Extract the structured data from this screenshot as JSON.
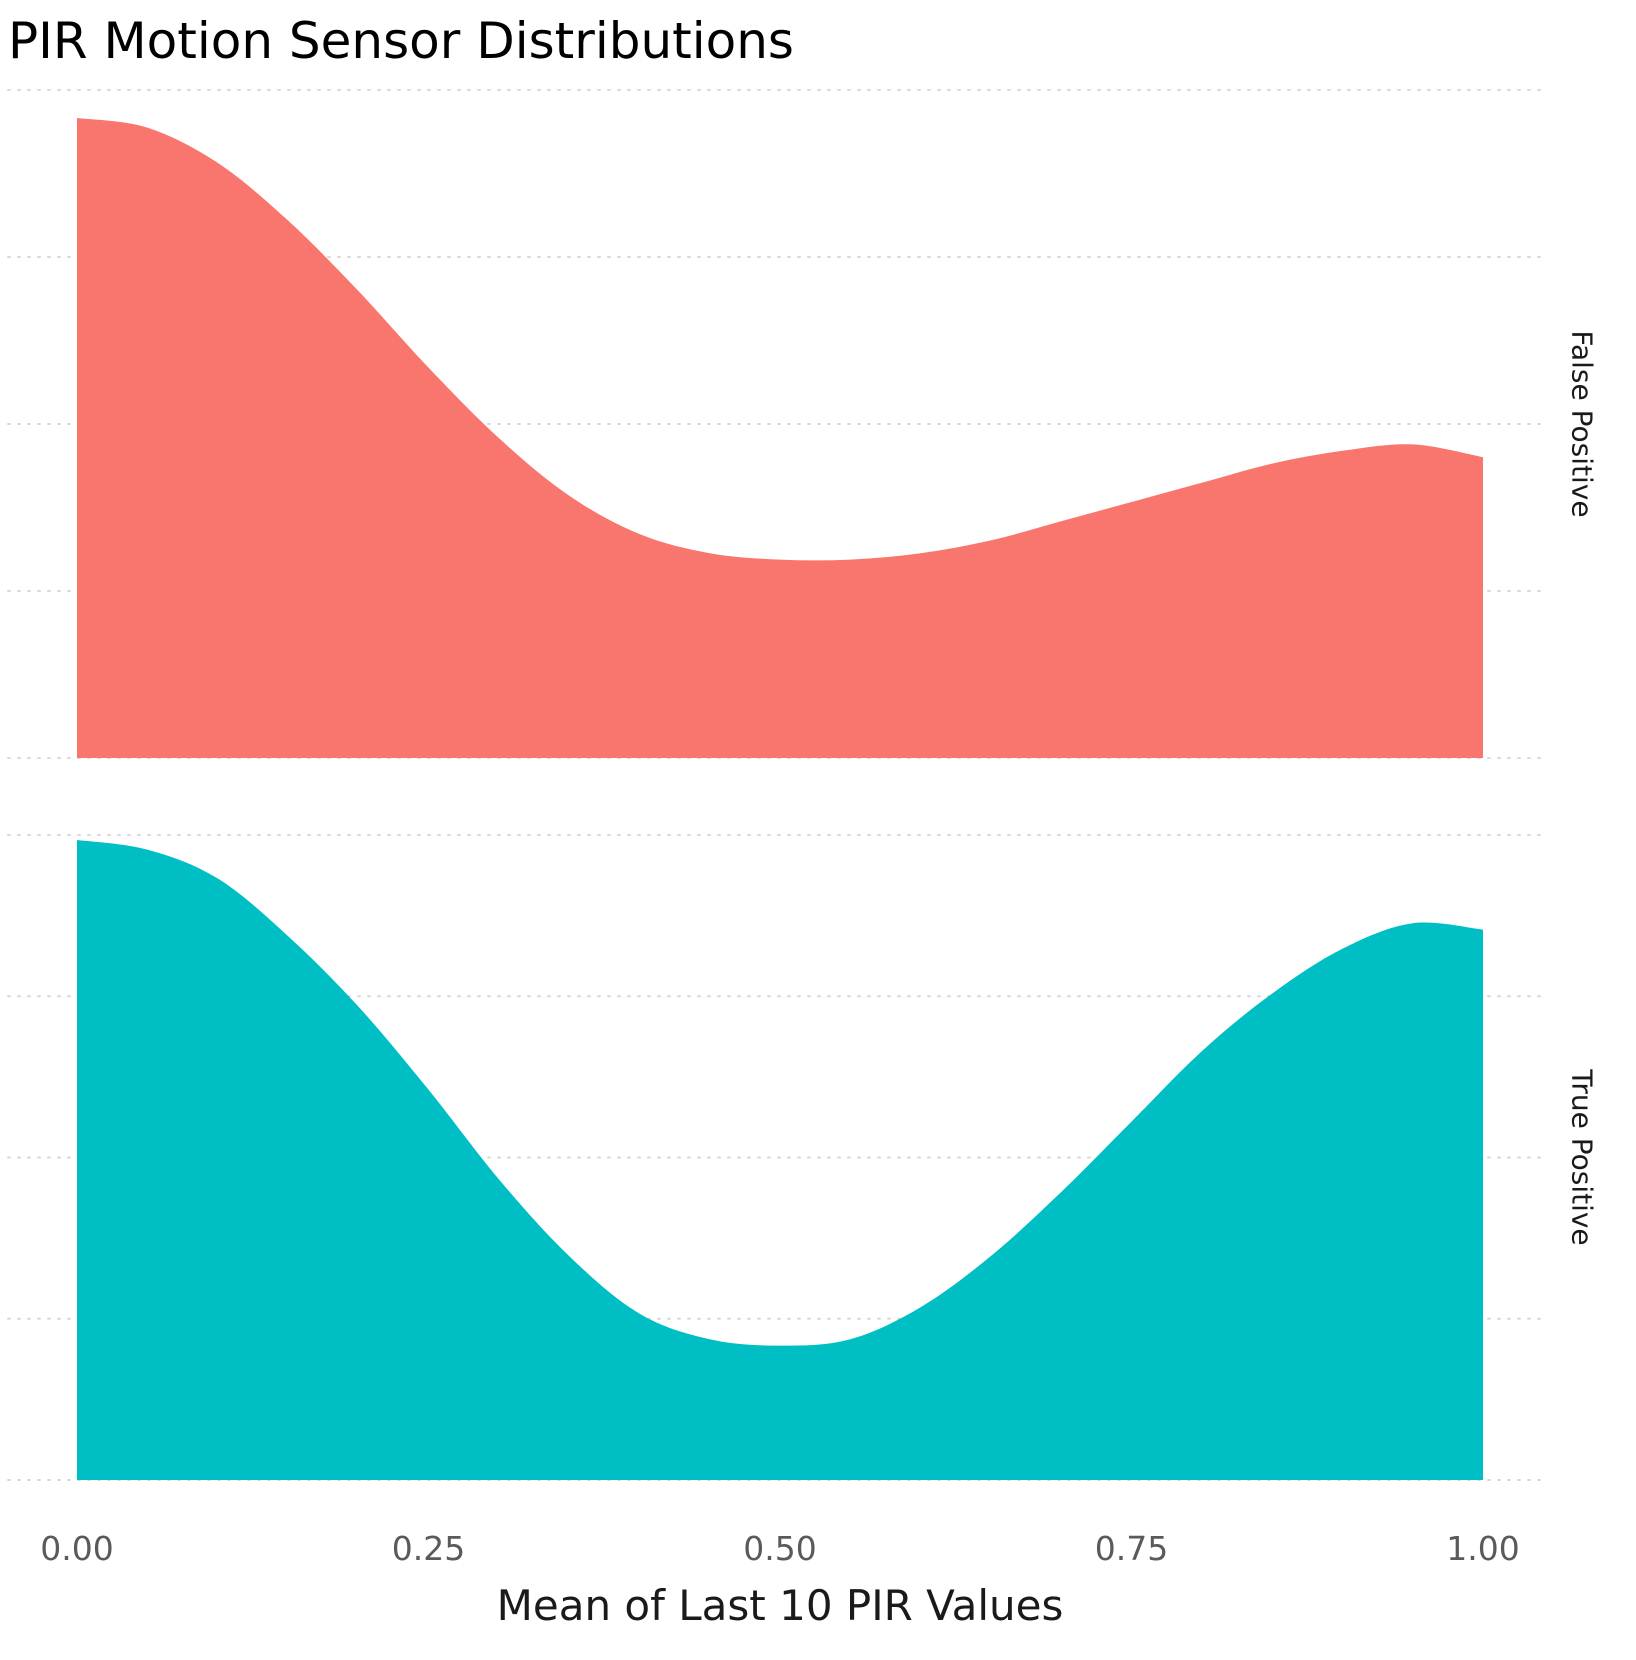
{
  "chart_data": {
    "type": "area",
    "title": "PIR Motion Sensor Distributions",
    "xlabel": "Mean of Last 10 PIR Values",
    "ylabel": "",
    "xlim": [
      0,
      1
    ],
    "x_ticks": [
      "0.00",
      "0.25",
      "0.50",
      "0.75",
      "1.00"
    ],
    "grid": "horizontal dotted",
    "facets": [
      {
        "name": "False Positive",
        "color": "#F8766D",
        "x": [
          0.0,
          0.05,
          0.1,
          0.15,
          0.2,
          0.25,
          0.3,
          0.35,
          0.4,
          0.45,
          0.5,
          0.55,
          0.6,
          0.65,
          0.7,
          0.75,
          0.8,
          0.85,
          0.9,
          0.95,
          1.0
        ],
        "density": [
          1.0,
          0.985,
          0.93,
          0.84,
          0.73,
          0.61,
          0.5,
          0.41,
          0.35,
          0.32,
          0.31,
          0.31,
          0.32,
          0.34,
          0.37,
          0.4,
          0.43,
          0.46,
          0.48,
          0.49,
          0.47
        ]
      },
      {
        "name": "True Positive",
        "color": "#00BFC4",
        "x": [
          0.0,
          0.05,
          0.1,
          0.15,
          0.2,
          0.25,
          0.3,
          0.35,
          0.4,
          0.45,
          0.5,
          0.55,
          0.6,
          0.65,
          0.7,
          0.75,
          0.8,
          0.85,
          0.9,
          0.95,
          1.0
        ],
        "density": [
          1.0,
          0.985,
          0.94,
          0.85,
          0.74,
          0.61,
          0.47,
          0.35,
          0.26,
          0.22,
          0.21,
          0.22,
          0.27,
          0.35,
          0.45,
          0.56,
          0.67,
          0.76,
          0.83,
          0.87,
          0.86
        ]
      }
    ]
  }
}
